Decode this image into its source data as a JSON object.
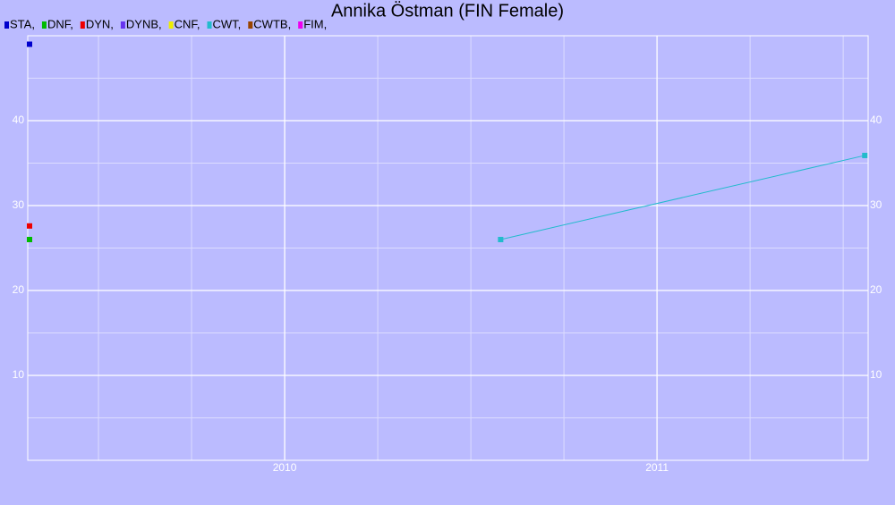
{
  "chart_data": {
    "type": "line",
    "title": "Annika Östman (FIN Female)",
    "xlim": [
      2009.31,
      2011.567
    ],
    "xticks": [
      2010,
      2011
    ],
    "xminorticks": [
      2009.5,
      2009.75,
      2010.25,
      2010.5,
      2010.75,
      2011.25,
      2011.5
    ],
    "ylim": [
      0,
      50
    ],
    "yticks": [
      10,
      20,
      30,
      40
    ],
    "yminorticks": [
      5,
      15,
      25,
      35,
      45
    ],
    "grid": true,
    "series": [
      {
        "name": "STA,",
        "color": "#0000cc",
        "x": [
          2009.31
        ],
        "values": [
          49
        ]
      },
      {
        "name": "DNF,",
        "color": "#00bb00",
        "x": [
          2009.31
        ],
        "values": [
          26
        ]
      },
      {
        "name": "DYN,",
        "color": "#ee0000",
        "x": [
          2009.31
        ],
        "values": [
          27.6
        ]
      },
      {
        "name": "DYNB,",
        "color": "#6633ee",
        "x": [],
        "values": []
      },
      {
        "name": "CNF,",
        "color": "#eeee00",
        "x": [],
        "values": []
      },
      {
        "name": "CWT,",
        "color": "#22bbcc",
        "x": [
          2010.58,
          2011.558
        ],
        "values": [
          26,
          35.9
        ]
      },
      {
        "name": "CWTB,",
        "color": "#994400",
        "x": [],
        "values": []
      },
      {
        "name": "FIM,",
        "color": "#ee00ee",
        "x": [],
        "values": []
      }
    ]
  }
}
